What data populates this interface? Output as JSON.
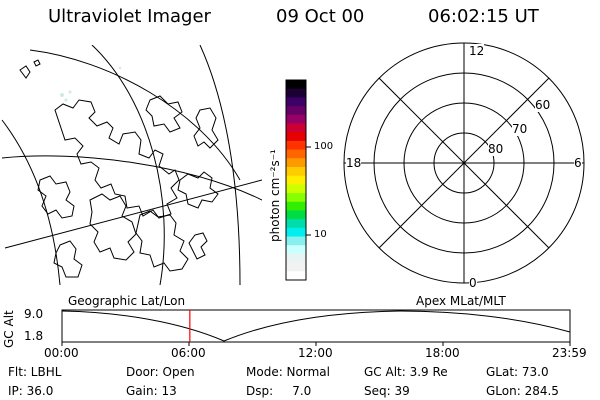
{
  "header": {
    "title": "Ultraviolet Imager",
    "date": "09 Oct 00",
    "time": "06:02:15 UT"
  },
  "left_panel": {
    "label": "Geographic Lat/Lon"
  },
  "right_panel": {
    "label": "Apex MLat/MLT",
    "mlt_labels": [
      "12",
      "18",
      "6",
      "0"
    ],
    "lat_labels": [
      "60",
      "70",
      "80"
    ]
  },
  "colorbar": {
    "unit_label": "photon cm⁻²s⁻¹",
    "tick_labels": [
      "100",
      "10"
    ],
    "colors": [
      "#000000",
      "#1a0033",
      "#3d0066",
      "#660066",
      "#990066",
      "#cc0033",
      "#e60000",
      "#ff3300",
      "#ff6600",
      "#ff9900",
      "#ffcc00",
      "#ffee00",
      "#ccff00",
      "#88ff00",
      "#33ee00",
      "#00dd44",
      "#00ddaa",
      "#00eeee",
      "#88eeee",
      "#ccffff",
      "#e8f4f4",
      "#f2f2f2",
      "#ffffff"
    ]
  },
  "timeline": {
    "ylabel": "GC Alt",
    "y_ticks": [
      "9.0",
      "1.8"
    ],
    "x_ticks": [
      "00:00",
      "06:00",
      "12:00",
      "18:00",
      "23:59"
    ],
    "marker_time_hours": 6.04,
    "marker_color": "#ff0000"
  },
  "info": {
    "flt": "Flt: LBHL",
    "door": "Door: Open",
    "mode": "Mode: Normal",
    "gcalt": "GC Alt: 3.9 Re",
    "glat": "GLat: 73.0",
    "ip": "IP: 36.0",
    "gain": "Gain: 13",
    "dsp": "Dsp:     7.0",
    "seq": "Seq: 39",
    "glon": "GLon: 284.5"
  }
}
